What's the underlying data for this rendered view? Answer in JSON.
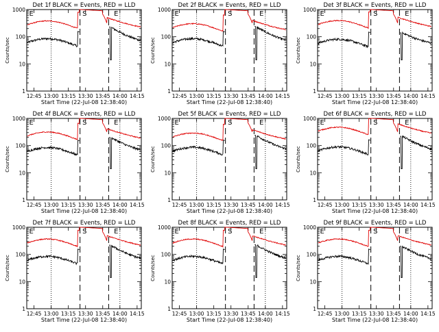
{
  "chart_data": [
    {
      "type": "line",
      "title": "Det 1f BLACK = Events, RED = LLD",
      "xlabel": "Start Time (22-Jul-08 12:38:40)",
      "ylabel": "Counts/sec",
      "yscale": "log",
      "ylim": [
        1,
        1000
      ],
      "xtick_labels": [
        "12:45",
        "13:00",
        "13:15",
        "13:30",
        "13:45",
        "14:00",
        "14:15"
      ],
      "ytick_labels": [
        "1",
        "10",
        "100",
        "1000"
      ],
      "region_labels": [
        "E",
        "S",
        "E"
      ],
      "red_level": 1.45,
      "black_level": 1.0,
      "black_spike": 1.15
    },
    {
      "type": "line",
      "title": "Det 2f BLACK = Events, RED = LLD",
      "xlabel": "Start Time (22-Jul-08 12:38:40)",
      "ylabel": "Counts/sec",
      "yscale": "log",
      "ylim": [
        1,
        1000
      ],
      "xtick_labels": [
        "12:45",
        "13:00",
        "13:15",
        "13:30",
        "13:45",
        "14:00",
        "14:15"
      ],
      "ytick_labels": [
        "1",
        "10",
        "100",
        "1000"
      ],
      "region_labels": [
        "E",
        "S",
        "E"
      ],
      "red_level": 1.15,
      "black_level": 1.0,
      "black_spike": 1.2
    },
    {
      "type": "line",
      "title": "Det 3f BLACK = Events, RED = LLD",
      "xlabel": "Start Time (22-Jul-08 12:38:40)",
      "ylabel": "Counts/sec",
      "yscale": "log",
      "ylim": [
        1,
        1000
      ],
      "xtick_labels": [
        "12:45",
        "13:00",
        "13:15",
        "13:30",
        "13:45",
        "14:00",
        "14:15"
      ],
      "ytick_labels": [
        "1",
        "10",
        "100",
        "1000"
      ],
      "region_labels": [
        "E",
        "S",
        "E"
      ],
      "red_level": 1.5,
      "black_level": 0.95,
      "black_spike": 0.7
    },
    {
      "type": "line",
      "title": "Det 4f BLACK = Events, RED = LLD",
      "xlabel": "Start Time (22-Jul-08 12:38:40)",
      "ylabel": "Counts/sec",
      "yscale": "log",
      "ylim": [
        1,
        1000
      ],
      "xtick_labels": [
        "12:45",
        "13:00",
        "13:15",
        "13:30",
        "13:45",
        "14:00",
        "14:15"
      ],
      "ytick_labels": [
        "1",
        "10",
        "100",
        "1000"
      ],
      "region_labels": [
        "E",
        "S",
        "E"
      ],
      "red_level": 1.2,
      "black_level": 1.0,
      "black_spike": 1.0
    },
    {
      "type": "line",
      "title": "Det 5f BLACK = Events, RED = LLD",
      "xlabel": "Start Time (22-Jul-08 12:38:40)",
      "ylabel": "Counts/sec",
      "yscale": "log",
      "ylim": [
        1,
        1000
      ],
      "xtick_labels": [
        "12:45",
        "13:00",
        "13:15",
        "13:30",
        "13:45",
        "14:00",
        "14:15"
      ],
      "ytick_labels": [
        "1",
        "10",
        "100",
        "1000"
      ],
      "region_labels": [
        "E",
        "S",
        "E"
      ],
      "red_level": 1.1,
      "black_level": 1.02,
      "black_spike": 1.2
    },
    {
      "type": "line",
      "title": "Det 6f BLACK = Events, RED = LLD",
      "xlabel": "Start Time (22-Jul-08 12:38:40)",
      "ylabel": "Counts/sec",
      "yscale": "log",
      "ylim": [
        1,
        1000
      ],
      "xtick_labels": [
        "12:45",
        "13:00",
        "13:15",
        "13:30",
        "13:45",
        "14:00",
        "14:15"
      ],
      "ytick_labels": [
        "1",
        "10",
        "100",
        "1000"
      ],
      "region_labels": [
        "E",
        "S",
        "E"
      ],
      "red_level": 1.8,
      "black_level": 1.05,
      "black_spike": 1.1
    },
    {
      "type": "line",
      "title": "Det 7f BLACK = Events, RED = LLD",
      "xlabel": "Start Time (22-Jul-08 12:38:40)",
      "ylabel": "Counts/sec",
      "yscale": "log",
      "ylim": [
        1,
        1000
      ],
      "xtick_labels": [
        "12:45",
        "13:00",
        "13:15",
        "13:30",
        "13:45",
        "14:00",
        "14:15"
      ],
      "ytick_labels": [
        "1",
        "10",
        "100",
        "1000"
      ],
      "region_labels": [
        "E",
        "S",
        "E"
      ],
      "red_level": 1.4,
      "black_level": 1.0,
      "black_spike": 1.1
    },
    {
      "type": "line",
      "title": "Det 8f BLACK = Events, RED = LLD",
      "xlabel": "Start Time (22-Jul-08 12:38:40)",
      "ylabel": "Counts/sec",
      "yscale": "log",
      "ylim": [
        1,
        1000
      ],
      "xtick_labels": [
        "12:45",
        "13:00",
        "13:15",
        "13:30",
        "13:45",
        "14:00",
        "14:15"
      ],
      "ytick_labels": [
        "1",
        "10",
        "100",
        "1000"
      ],
      "region_labels": [
        "E",
        "S",
        "E"
      ],
      "red_level": 1.4,
      "black_level": 1.0,
      "black_spike": 1.15
    },
    {
      "type": "line",
      "title": "Det 9f BLACK = Events, RED = LLD",
      "xlabel": "Start Time (22-Jul-08 12:38:40)",
      "ylabel": "Counts/sec",
      "yscale": "log",
      "ylim": [
        1,
        1000
      ],
      "xtick_labels": [
        "12:45",
        "13:00",
        "13:15",
        "13:30",
        "13:45",
        "14:00",
        "14:15"
      ],
      "ytick_labels": [
        "1",
        "10",
        "100",
        "1000"
      ],
      "region_labels": [
        "E",
        "S",
        "E"
      ],
      "red_level": 1.4,
      "black_level": 1.0,
      "black_spike": 1.0
    }
  ]
}
